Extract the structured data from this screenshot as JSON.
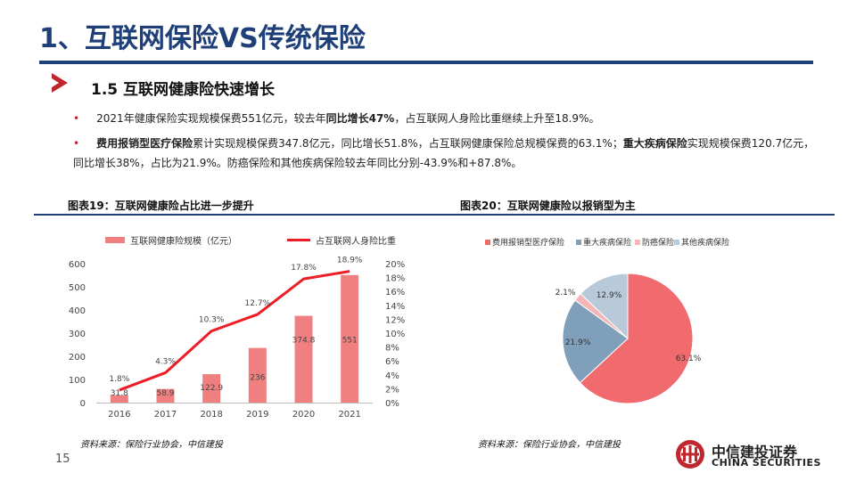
{
  "header": {
    "title": "1、互联网保险VS传统保险",
    "subtitle": "1.5 互联网健康险快速增长"
  },
  "bullets": {
    "b1": {
      "dot": "•",
      "t1": "2021年健康保险实现规模保费551亿元，较去年",
      "t2": "同比增长47%",
      "t3": "，占互联网人身险比重继续上升至18.9%。"
    },
    "b2": {
      "dot": "•",
      "t1": "费用报销型医疗保险",
      "t2": "累计实现规模保费347.8亿元，同比增长51.8%，占互联网健康保险总规模保费的63.1%；",
      "t3": "重大疾病保险",
      "t4": "实现规模保费120.7亿元，同比增长38%，占比为21.9%。防癌保险和其他疾病保险较去年同比分别-43.9%和+87.8%。"
    }
  },
  "figures": {
    "fig19_title": "图表19：互联网健康险占比进一步提升",
    "fig20_title": "图表20：互联网健康险以报销型为主",
    "source1": "资料来源：保险行业协会，中信建投",
    "source2": "资料来源：保险行业协会，中信建投"
  },
  "footer": {
    "page_number": "15",
    "logo_cn": "中信建投证券",
    "logo_en": "CHINA SECURITIES"
  },
  "colors": {
    "title": "#1f3f78",
    "bar": "#f08080",
    "line": "#ee1c25",
    "pie": [
      "#f06a6e",
      "#7f9fba",
      "#f4b6b6",
      "#b8cad9"
    ],
    "logo": "#c0262d"
  },
  "chart_data": [
    {
      "type": "bar+line",
      "categories": [
        "2016",
        "2017",
        "2018",
        "2019",
        "2020",
        "2021"
      ],
      "series": [
        {
          "name": "互联网健康险规模（亿元）",
          "values": [
            31.8,
            58.9,
            122.9,
            236,
            374.8,
            551
          ],
          "labels": [
            "31.8",
            "58.9",
            "122.9",
            "236",
            "374.8",
            "551"
          ],
          "axis": "left"
        },
        {
          "name": "占互联网人身险比重",
          "values": [
            1.8,
            4.3,
            10.3,
            12.7,
            17.8,
            18.9
          ],
          "labels": [
            "1.8%",
            "4.3%",
            "10.3%",
            "12.7%",
            "17.8%",
            "18.9%"
          ],
          "axis": "right"
        }
      ],
      "left_axis": {
        "min": 0,
        "max": 600,
        "ticks": [
          "0",
          "100",
          "200",
          "300",
          "400",
          "500",
          "600"
        ]
      },
      "right_axis": {
        "min": 0,
        "max": 20,
        "ticks": [
          "0%",
          "2%",
          "4%",
          "6%",
          "8%",
          "10%",
          "12%",
          "14%",
          "16%",
          "18%",
          "20%"
        ]
      },
      "legend": "top",
      "grid": false
    },
    {
      "type": "pie",
      "categories": [
        "费用报销型医疗保险",
        "重大疾病保险",
        "防癌保险",
        "其他疾病保险"
      ],
      "values": [
        63.1,
        21.9,
        2.1,
        12.9
      ],
      "labels": [
        "63.1%",
        "21.9%",
        "2.1%",
        "12.9%"
      ],
      "legend": "top"
    }
  ]
}
